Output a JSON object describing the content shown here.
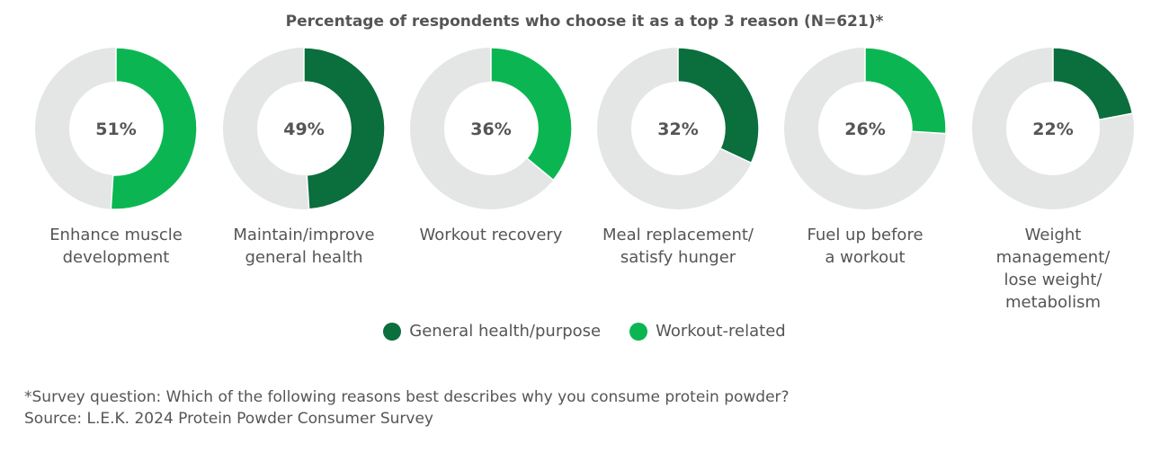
{
  "chart_data": {
    "type": "pie",
    "subtype": "donut",
    "title": "Percentage of respondents who choose it as a top 3 reason (N=621)*",
    "categories": [
      "Enhance muscle development",
      "Maintain/improve general health",
      "Workout recovery",
      "Meal replacement/ satisfy hunger",
      "Fuel up before a workout",
      "Weight management/ lose weight/ metabolism"
    ],
    "label_lines": [
      [
        "Enhance muscle",
        "development"
      ],
      [
        "Maintain/improve",
        "general health"
      ],
      [
        "Workout recovery"
      ],
      [
        "Meal replacement/",
        "satisfy hunger"
      ],
      [
        "Fuel up before",
        "a workout"
      ],
      [
        "Weight",
        "management/",
        "lose weight/",
        "metabolism"
      ]
    ],
    "values": [
      51,
      49,
      36,
      32,
      26,
      22
    ],
    "value_labels": [
      "51%",
      "49%",
      "36%",
      "32%",
      "26%",
      "22%"
    ],
    "groups": [
      "Workout-related",
      "General health/purpose",
      "Workout-related",
      "General health/purpose",
      "Workout-related",
      "General health/purpose"
    ],
    "legend": [
      {
        "name": "General health/purpose",
        "color": "#0a6e3d"
      },
      {
        "name": "Workout-related",
        "color": "#0bb652"
      }
    ],
    "remainder_color": "#e3e6e5",
    "legend_position": "bottom"
  },
  "footnote": {
    "survey": "*Survey question: Which of the following reasons best describes why you consume protein powder?",
    "source": "Source: L.E.K. 2024 Protein Powder Consumer Survey"
  }
}
